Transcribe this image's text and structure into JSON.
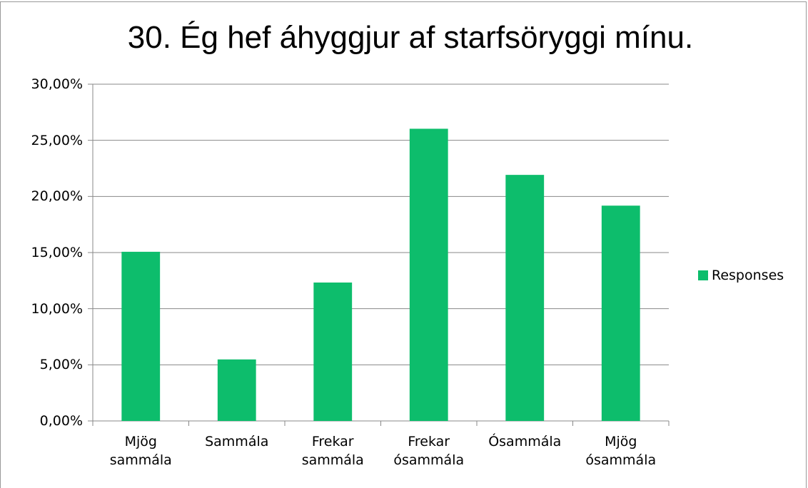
{
  "chart_data": {
    "type": "bar",
    "title": "30. Ég hef áhyggjur af starfsöryggi mínu.",
    "categories": [
      "Mjög sammála",
      "Sammála",
      "Frekar sammála",
      "Frekar ósammála",
      "Ósammála",
      "Mjög ósammála"
    ],
    "series": [
      {
        "name": "Responses",
        "color": "#0dbd6c",
        "values": [
          15.07,
          5.48,
          12.33,
          26.03,
          21.92,
          19.18
        ]
      }
    ],
    "ylim": [
      0,
      30
    ],
    "yticks": [
      {
        "value": 0,
        "label": "0,00%"
      },
      {
        "value": 5,
        "label": "5,00%"
      },
      {
        "value": 10,
        "label": "10,00%"
      },
      {
        "value": 15,
        "label": "15,00%"
      },
      {
        "value": 20,
        "label": "20,00%"
      },
      {
        "value": 25,
        "label": "25,00%"
      },
      {
        "value": 30,
        "label": "30,00%"
      }
    ],
    "grid": true,
    "legend": "right"
  }
}
